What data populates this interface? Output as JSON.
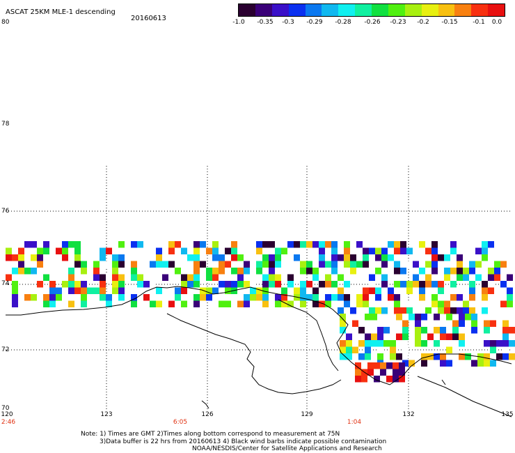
{
  "header": {
    "title": "ASCAT 25KM MLE-1 descending",
    "date": "20160613"
  },
  "colorbar": {
    "colors": [
      "#2a0030",
      "#3a0078",
      "#3a10c8",
      "#0a30f0",
      "#0a78f0",
      "#10b8f0",
      "#10f0f0",
      "#10f0a0",
      "#10e040",
      "#50f010",
      "#a8f010",
      "#e8f010",
      "#f8c010",
      "#f88010",
      "#f83010",
      "#e81010"
    ],
    "labels": [
      "-1.0",
      "-0.35",
      "-0.3",
      "-0.29",
      "-0.28",
      "-0.26",
      "-0.23",
      "-0.2",
      "-0.15",
      "-0.1",
      "0.0"
    ]
  },
  "axes": {
    "lat_labels": [
      "80",
      "78",
      "76",
      "74",
      "72",
      "70"
    ],
    "lon_labels": [
      "120",
      "123",
      "126",
      "129",
      "132",
      "135"
    ],
    "time_labels": [
      "2:46",
      "6:05",
      "1:04"
    ]
  },
  "notes": {
    "line1": "Note: 1) Times are GMT 2)Times along bottom correspond to measurement at 75N",
    "line2": "3)Data buffer is 22 hrs from 20160613 4) Black wind barbs indicate possible contamination",
    "line3": "NOAA/NESDIS/Center for Satellite Applications and Research"
  }
}
